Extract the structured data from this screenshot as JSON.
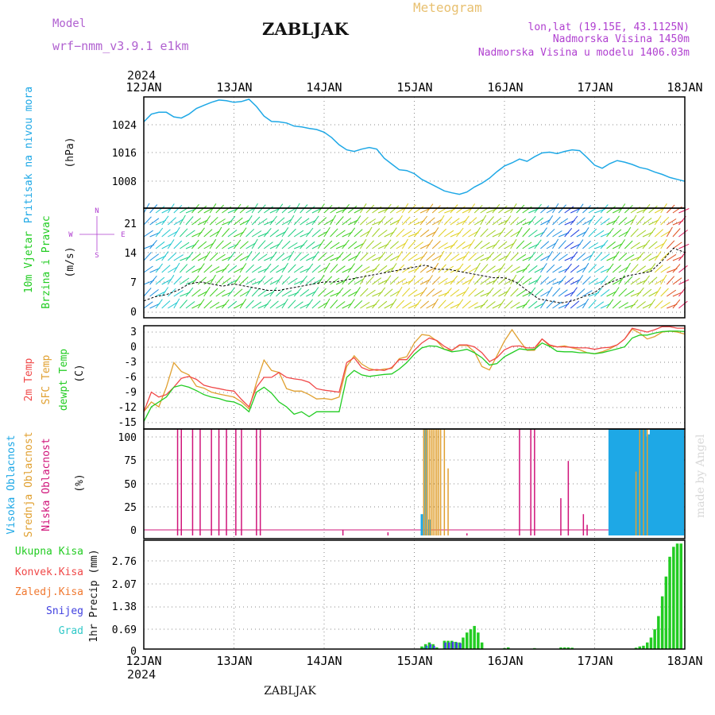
{
  "header": {
    "model_label": "Model",
    "model_name": "wrf−nmm_v3.9.1  e1km",
    "title": "ZABLJAK",
    "meteogram": "Meteogram",
    "lonlat": "lon,lat (19.15E, 43.1125N)",
    "elev": "Nadmorska Visina 1450m",
    "elev_model": "Nadmorska Visina u modelu 1406.03m",
    "credit": "made by Angel",
    "footer": "ZABLJAK",
    "year": "2024"
  },
  "axis": {
    "dates": [
      "12JAN",
      "13JAN",
      "14JAN",
      "15JAN",
      "16JAN",
      "17JAN",
      "18JAN"
    ]
  },
  "colors": {
    "pressure": "#1ea8e6",
    "temp2m": "#f04848",
    "sfc": "#e0a030",
    "dewpt": "#22cc22",
    "high": "#1ea8e6",
    "mid": "#e0a030",
    "low": "#d0147a",
    "total": "#22cc22",
    "conv": "#f04848",
    "frz": "#f07830",
    "snow": "#4040e0",
    "grad": "#30c8c8"
  },
  "panels": {
    "pressure": {
      "ylabels": [
        "Pritisak na nivou mora",
        "(hPa)"
      ],
      "ticks": [
        "1024",
        "1016",
        "1008"
      ]
    },
    "wind": {
      "ylabels": [
        "10m Vjetar",
        "Brzina i Pravac",
        "(m/s)"
      ],
      "ticks": [
        "21",
        "14",
        "7",
        "0"
      ],
      "compass": {
        "n": "N",
        "s": "S",
        "w": "W",
        "e": "E"
      }
    },
    "temp": {
      "ylabels": [
        "2m Temp",
        "SFC Temp",
        "dewpt Temp",
        "(C)"
      ],
      "ticks": [
        "3",
        "0",
        "-3",
        "-6",
        "-9",
        "-12",
        "-15"
      ]
    },
    "cloud": {
      "ylabels": [
        "Visoka Oblacnost",
        "Srednja Oblacnost",
        "Niska Oblacnost",
        "(%)"
      ],
      "ticks": [
        "100",
        "75",
        "50",
        "25",
        "0"
      ]
    },
    "precip": {
      "legend": [
        "Ukupna Kisa",
        "Konvek.Kisa",
        "Zaledj.Kisa",
        "Snijeg",
        "Grad"
      ],
      "ylabel": "1hr Precip (mm)",
      "ticks": [
        "2.76",
        "2.07",
        "1.38",
        "0.69",
        "0"
      ]
    }
  },
  "chart_data": [
    {
      "type": "line",
      "title": "Pritisak na nivou mora",
      "ylabel": "(hPa)",
      "ylim": [
        1000,
        1029
      ],
      "x_unit": "hours since 12JAN 00UTC",
      "series": [
        {
          "name": "Pritisak na nivou mora",
          "x": [
            0,
            2,
            4,
            6,
            8,
            10,
            12,
            14,
            16,
            18,
            20,
            22,
            24,
            26,
            28,
            30,
            32,
            34,
            36,
            38,
            40,
            42,
            44,
            46,
            48,
            50,
            52,
            54,
            56,
            58,
            60,
            62,
            64,
            66,
            68,
            70,
            72,
            74,
            76,
            78,
            80,
            82,
            84,
            86,
            88,
            90,
            92,
            94,
            96,
            98,
            100,
            102,
            104,
            106,
            108,
            110,
            112,
            114,
            116,
            118,
            120,
            122,
            124,
            126,
            128,
            130,
            132,
            134,
            136,
            138,
            140,
            142,
            144
          ],
          "values": [
            1022.5,
            1024.5,
            1025,
            1025,
            1023.8,
            1023.5,
            1024.5,
            1026,
            1026.8,
            1027.6,
            1028.2,
            1028,
            1027.6,
            1027.8,
            1028.4,
            1026.5,
            1024,
            1022.6,
            1022.5,
            1022.2,
            1021.4,
            1021.2,
            1020.8,
            1020.5,
            1019.8,
            1018.4,
            1016.5,
            1015.2,
            1014.8,
            1015.4,
            1015.8,
            1015.4,
            1013,
            1011.5,
            1010,
            1009.8,
            1009,
            1007.5,
            1006.5,
            1005.5,
            1004.5,
            1004,
            1003.6,
            1004.2,
            1005.5,
            1006.5,
            1007.8,
            1009.5,
            1011,
            1011.8,
            1012.8,
            1012.2,
            1013.4,
            1014.4,
            1014.6,
            1014.2,
            1014.8,
            1015.2,
            1015,
            1013.2,
            1011.2,
            1010.4,
            1011.6,
            1012.4,
            1012,
            1011.4,
            1010.6,
            1010.2,
            1009.4,
            1008.8,
            1008,
            1007.5,
            1007
          ]
        }
      ]
    },
    {
      "type": "line",
      "title": "10m Vjetar Brzina i Pravac",
      "ylabel": "(m/s)",
      "ylim": [
        -1.5,
        24.5
      ],
      "x_unit": "hours since 12JAN 00UTC",
      "series": [
        {
          "name": "Brzina",
          "x": [
            0,
            3,
            6,
            9,
            12,
            15,
            18,
            21,
            24,
            27,
            30,
            33,
            36,
            39,
            42,
            45,
            48,
            51,
            54,
            57,
            60,
            63,
            66,
            69,
            72,
            75,
            78,
            81,
            84,
            87,
            90,
            93,
            96,
            99,
            102,
            105,
            108,
            111,
            114,
            117,
            120,
            123,
            126,
            129,
            132,
            135,
            138,
            141,
            144
          ],
          "values": [
            2.5,
            3.5,
            4,
            5,
            6.5,
            7,
            6.5,
            6,
            6.5,
            6,
            5.5,
            5,
            5,
            5.5,
            6,
            6.5,
            7,
            7,
            7.5,
            8,
            8.5,
            9,
            9.5,
            10,
            10.5,
            11,
            10,
            10,
            9.5,
            9,
            8.5,
            8,
            8,
            7,
            5,
            3,
            2.5,
            2,
            2.5,
            3.5,
            4.5,
            6.5,
            7.5,
            8.5,
            9,
            9.5,
            12,
            15,
            14
          ]
        }
      ]
    },
    {
      "type": "line",
      "title": "2m Temp / SFC Temp / dewpt Temp",
      "ylabel": "(C)",
      "ylim": [
        -16.5,
        4.5
      ],
      "x_unit": "hours since 12JAN 00UTC",
      "x": [
        0,
        2,
        4,
        6,
        8,
        10,
        12,
        14,
        16,
        18,
        20,
        22,
        24,
        26,
        28,
        30,
        32,
        34,
        36,
        38,
        40,
        42,
        44,
        46,
        48,
        50,
        52,
        54,
        56,
        58,
        60,
        62,
        64,
        66,
        68,
        70,
        72,
        74,
        76,
        78,
        80,
        82,
        84,
        86,
        88,
        90,
        92,
        94,
        96,
        98,
        100,
        102,
        104,
        106,
        108,
        110,
        112,
        114,
        116,
        118,
        120,
        122,
        124,
        126,
        128,
        130,
        132,
        134,
        136,
        138,
        140,
        142,
        144
      ],
      "series": [
        {
          "name": "2m Temp",
          "values": [
            -13,
            -9,
            -10,
            -9.5,
            -8,
            -6.2,
            -5.8,
            -6.4,
            -7.6,
            -8,
            -8.3,
            -8.6,
            -8.8,
            -10.5,
            -12,
            -8,
            -6,
            -6,
            -5,
            -6,
            -6.3,
            -6.5,
            -7,
            -8.3,
            -8.6,
            -8.8,
            -9,
            -3,
            -2,
            -4,
            -4.6,
            -4.4,
            -4.6,
            -4,
            -2.4,
            -2.4,
            -0.5,
            1,
            2,
            1.5,
            0.3,
            -0.5,
            0.6,
            0.6,
            0.2,
            -1,
            -2.8,
            -2,
            -0.4,
            0.3,
            0.4,
            0,
            0,
            1.8,
            0.6,
            0.2,
            0.2,
            0.1,
            0,
            0,
            -0.3,
            0,
            0.1,
            0.6,
            1.8,
            4,
            3.6,
            3.2,
            3.7,
            4.3,
            4.3,
            4,
            4
          ]
        },
        {
          "name": "SFC Temp",
          "values": [
            -13,
            -11,
            -12,
            -8,
            -3,
            -4.8,
            -5.5,
            -7.8,
            -8.2,
            -9,
            -9.4,
            -9.7,
            -10,
            -11,
            -12.4,
            -7,
            -2.5,
            -4.6,
            -5,
            -8.3,
            -8.8,
            -8.8,
            -9.5,
            -10.4,
            -10.3,
            -10.5,
            -10,
            -3.8,
            -1.6,
            -3.3,
            -4.2,
            -4.6,
            -4.3,
            -4.2,
            -2.2,
            -1.8,
            1,
            2.7,
            2.5,
            1.4,
            -0.3,
            -0.5,
            0.5,
            0.5,
            -0.8,
            -3.8,
            -4.5,
            -1.6,
            1.4,
            3.7,
            1.5,
            -0.5,
            -0.5,
            1.8,
            0.4,
            0.2,
            0.4,
            0,
            -0.4,
            -1,
            -1.2,
            -0.8,
            -0.2,
            0.6,
            1.8,
            3.8,
            3,
            1.8,
            2.3,
            3.2,
            3.4,
            3.2,
            2.8
          ]
        },
        {
          "name": "dewpt Temp",
          "values": [
            -15,
            -12,
            -11,
            -10,
            -8,
            -7.6,
            -8,
            -8.7,
            -9.5,
            -10,
            -10.3,
            -10.8,
            -11,
            -11.7,
            -13,
            -9,
            -8,
            -9.2,
            -11,
            -12,
            -13.5,
            -13,
            -14,
            -13,
            -13,
            -13,
            -13,
            -6,
            -4.6,
            -5.5,
            -5.8,
            -5.6,
            -5.4,
            -5.3,
            -4.3,
            -3,
            -1.3,
            0,
            0.4,
            0.3,
            -0.3,
            -0.8,
            -0.6,
            -0.3,
            -1,
            -2,
            -3.5,
            -3.2,
            -1.8,
            -1,
            -0.2,
            -0.4,
            -0.3,
            1,
            0.3,
            -0.7,
            -0.8,
            -0.8,
            -1,
            -1,
            -1.2,
            -1,
            -0.6,
            -0.2,
            0.2,
            2,
            2.6,
            2.6,
            3,
            3.3,
            3.4,
            3.4,
            3.3
          ]
        }
      ]
    },
    {
      "type": "bar",
      "title": "Visoka / Srednja / Niska Oblacnost",
      "ylabel": "(%)",
      "ylim": [
        -3,
        100
      ],
      "x_unit": "hours since 12JAN 00UTC",
      "series": [
        {
          "name": "Visoka Oblacnost",
          "x": [
            74,
            75,
            76,
            124,
            124.5,
            125,
            125.5,
            126,
            126.5,
            127,
            127.5,
            128,
            128.5,
            129,
            129.5,
            130,
            130.5,
            131,
            131.5,
            132,
            132.5,
            133,
            133.5,
            134,
            134.5,
            135,
            135.5,
            136,
            136.5,
            137,
            137.5,
            138,
            138.5,
            139,
            139.5,
            140,
            140.5,
            141,
            141.5,
            142,
            142.5,
            143,
            143.5
          ],
          "values": [
            20,
            100,
            15,
            100,
            100,
            100,
            100,
            100,
            100,
            100,
            100,
            100,
            100,
            100,
            100,
            100,
            100,
            100,
            100,
            100,
            100,
            100,
            100,
            93,
            95,
            100,
            100,
            100,
            100,
            100,
            100,
            100,
            100,
            100,
            100,
            100,
            100,
            100,
            100,
            100,
            100,
            100,
            100
          ]
        },
        {
          "name": "Srednja Oblacnost",
          "x": [
            74.5,
            75,
            75.5,
            76,
            76.5,
            77,
            77.5,
            78,
            78.5,
            79,
            80,
            81,
            131,
            132,
            133,
            134
          ],
          "values": [
            100,
            100,
            100,
            100,
            100,
            100,
            100,
            100,
            100,
            100,
            100,
            63,
            60,
            100,
            100,
            100
          ]
        },
        {
          "name": "Niska Oblacnost",
          "x": [
            9,
            10,
            13,
            15,
            18,
            20,
            22,
            24.5,
            26,
            30,
            31,
            53,
            65,
            86,
            100,
            103,
            104,
            111,
            113,
            117,
            118
          ],
          "values": [
            100,
            100,
            100,
            100,
            100,
            100,
            100,
            100,
            100,
            100,
            100,
            5,
            3,
            2,
            100,
            100,
            100,
            35,
            70,
            20,
            10
          ]
        }
      ]
    },
    {
      "type": "bar",
      "title": "1hr Precip",
      "ylabel": "(mm)",
      "ylim": [
        0,
        3.3
      ],
      "x_unit": "hours since 12JAN 00UTC",
      "series": [
        {
          "name": "Ukupna Kisa",
          "x": [
            74,
            75,
            76,
            77,
            78,
            80,
            81,
            82,
            83,
            84,
            85,
            86,
            87,
            88,
            89,
            90,
            96,
            97,
            104,
            111,
            112,
            113,
            114,
            131,
            132,
            133,
            134,
            135,
            136,
            137,
            138,
            139,
            140,
            141,
            142,
            143
          ],
          "values": [
            0.08,
            0.15,
            0.2,
            0.15,
            0.05,
            0.25,
            0.25,
            0.25,
            0.22,
            0.2,
            0.35,
            0.5,
            0.6,
            0.7,
            0.5,
            0.2,
            0.03,
            0.05,
            0.03,
            0.05,
            0.05,
            0.05,
            0.04,
            0.04,
            0.08,
            0.1,
            0.2,
            0.35,
            0.6,
            1,
            1.6,
            2.2,
            2.8,
            3.1,
            3.2,
            3.2
          ]
        },
        {
          "name": "Snijeg",
          "x": [
            75,
            76,
            77,
            80,
            81,
            82,
            83,
            84
          ],
          "values": [
            0.1,
            0.15,
            0.1,
            0.2,
            0.2,
            0.22,
            0.2,
            0.18
          ]
        },
        {
          "name": "Grad",
          "x": [
            74,
            75,
            76
          ],
          "values": [
            0.05,
            0.08,
            0.06
          ]
        }
      ]
    }
  ]
}
